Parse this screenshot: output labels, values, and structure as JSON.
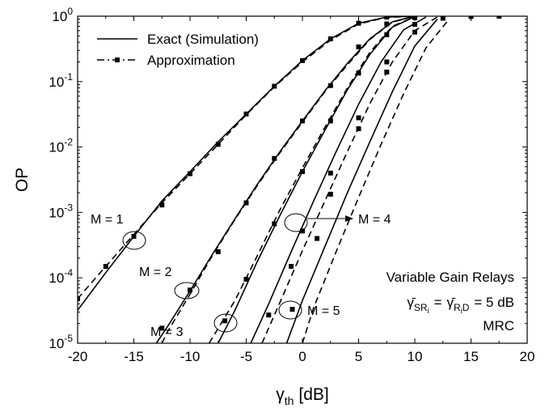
{
  "chart_data": {
    "type": "line",
    "xlabel": "γth [dB]",
    "xlabel_main": "γ",
    "xlabel_sub": "th",
    "xlabel_unit": "[dB]",
    "ylabel": "OP",
    "x_scale": "linear",
    "y_scale": "log",
    "xlim": [
      -20,
      20
    ],
    "ylim": [
      1e-05,
      1
    ],
    "x_ticks": [
      -20,
      -15,
      -10,
      -5,
      0,
      5,
      10,
      15,
      20
    ],
    "x_tick_labels": [
      "-20",
      "-15",
      "-10",
      "-5",
      "0",
      "5",
      "10",
      "15",
      "20"
    ],
    "y_ticks": [
      1e-05,
      0.0001,
      0.001,
      0.01,
      0.1,
      1
    ],
    "y_tick_labels": [
      {
        "base": "10",
        "exp": "-5"
      },
      {
        "base": "10",
        "exp": "-4"
      },
      {
        "base": "10",
        "exp": "-3"
      },
      {
        "base": "10",
        "exp": "-2"
      },
      {
        "base": "10",
        "exp": "-1"
      },
      {
        "base": "10",
        "exp": "0"
      }
    ],
    "grid": false,
    "legend": {
      "placement": "top-left",
      "entries": [
        {
          "label": "Exact (Simulation)",
          "style": "solid"
        },
        {
          "label": "Approximation",
          "style": "dash-dot with square markers"
        }
      ]
    },
    "curve_labels": [
      {
        "text": "M = 1",
        "at": [
          -15,
          0.00045
        ]
      },
      {
        "text": "M = 2",
        "at": [
          -10.2,
          6.5e-05
        ]
      },
      {
        "text": "M = 3",
        "at": [
          -6.8,
          2.2e-05
        ]
      },
      {
        "text": "M = 4",
        "at": [
          -0.9,
          0.0008
        ]
      },
      {
        "text": "M = 5",
        "at": [
          -1.1,
          3.3e-05
        ]
      }
    ],
    "annotations": {
      "line1": "Variable Gain Relays",
      "eq_sym": "γ̄",
      "eq_sub1": "SR",
      "eq_sub1_sub": "i",
      "eq_eq": "=",
      "eq_sub2": "R",
      "eq_sub2_sub": "i",
      "eq_sub2_tail": "D",
      "eq_value": "= 5 dB",
      "line3": "MRC"
    },
    "series": [
      {
        "M": 1,
        "exact": {
          "x": [
            -20,
            -17.5,
            -15,
            -12.5,
            -10,
            -7.5,
            -5,
            -2.5,
            0,
            2.5,
            5,
            7.5,
            10
          ],
          "y": [
            3.2e-05,
            0.00012,
            0.00043,
            0.0015,
            0.0042,
            0.012,
            0.032,
            0.085,
            0.21,
            0.45,
            0.78,
            0.97,
            1.0
          ]
        },
        "approx": {
          "x": [
            -20,
            -17.5,
            -15,
            -12.5,
            -10,
            -7.5,
            -5,
            -2.5,
            0,
            2.5,
            5,
            7.5,
            10
          ],
          "y": [
            4.8e-05,
            0.00015,
            0.00046,
            0.0014,
            0.0039,
            0.011,
            0.031,
            0.083,
            0.2,
            0.43,
            0.76,
            0.96,
            1.0
          ]
        },
        "markers": {
          "x": [
            -20,
            -17.5,
            -15,
            -12.5,
            -10,
            -7.5,
            -5,
            -2.5,
            0,
            2.5,
            5,
            7.5
          ],
          "y": [
            4.8e-05,
            0.00015,
            0.00043,
            0.0013,
            0.0039,
            0.011,
            0.032,
            0.085,
            0.21,
            0.45,
            0.78,
            0.97
          ]
        }
      },
      {
        "M": 2,
        "exact": {
          "x": [
            -13,
            -12,
            -10,
            -8,
            -6,
            -4,
            -2,
            0,
            2,
            4,
            6,
            8,
            10
          ],
          "y": [
            1e-05,
            1.8e-05,
            6.3e-05,
            0.00023,
            0.0008,
            0.0027,
            0.0085,
            0.025,
            0.072,
            0.19,
            0.45,
            0.82,
            1.0
          ]
        },
        "approx": {
          "x": [
            -12.5,
            -12,
            -10,
            -8,
            -6,
            -4,
            -2,
            0,
            2,
            4,
            6,
            8,
            10
          ],
          "y": [
            1e-05,
            1.5e-05,
            5.6e-05,
            0.00022,
            0.00078,
            0.0026,
            0.0082,
            0.024,
            0.07,
            0.18,
            0.44,
            0.81,
            1.0
          ]
        },
        "markers": {
          "x": [
            -12.5,
            -10,
            -7.5,
            -5,
            -2.5,
            0,
            2.5,
            5,
            7.5
          ],
          "y": [
            1.7e-05,
            6.5e-05,
            0.00025,
            0.0014,
            0.0067,
            0.025,
            0.087,
            0.34,
            0.76
          ]
        }
      },
      {
        "M": 3,
        "exact": {
          "x": [
            -7.5,
            -6,
            -4,
            -2,
            0,
            2,
            4,
            6,
            8,
            10
          ],
          "y": [
            1e-05,
            3.2e-05,
            0.00018,
            0.0009,
            0.0042,
            0.018,
            0.075,
            0.26,
            0.68,
            0.98
          ]
        },
        "approx": {
          "x": [
            -8.3,
            -6,
            -4,
            -2,
            0,
            2,
            4,
            6,
            8,
            10
          ],
          "y": [
            1e-05,
            4.5e-05,
            0.00022,
            0.0011,
            0.0048,
            0.02,
            0.08,
            0.28,
            0.7,
            0.98
          ]
        },
        "markers": {
          "x": [
            -6.9,
            -5,
            -2.5,
            0,
            2.5,
            5,
            7.5,
            10
          ],
          "y": [
            2.2e-05,
            9.5e-05,
            0.00067,
            0.0042,
            0.025,
            0.135,
            0.52,
            0.95
          ]
        }
      },
      {
        "M": 4,
        "exact": {
          "x": [
            -4.6,
            -3,
            -1,
            1,
            3,
            5,
            7,
            9,
            11
          ],
          "y": [
            1e-05,
            4e-05,
            0.00025,
            0.0015,
            0.0085,
            0.045,
            0.2,
            0.62,
            0.97
          ]
        },
        "approx": {
          "x": [
            -3.6,
            -2,
            0,
            2,
            4,
            6,
            8,
            10,
            12
          ],
          "y": [
            1e-05,
            4.2e-05,
            0.00026,
            0.0015,
            0.0085,
            0.046,
            0.2,
            0.6,
            0.97
          ]
        },
        "markers": {
          "x": [
            -3,
            -1,
            0,
            2.5,
            5,
            7.5,
            10
          ],
          "y": [
            2.7e-05,
            0.00015,
            0.00052,
            0.004,
            0.028,
            0.2,
            0.75
          ]
        }
      },
      {
        "M": 5,
        "exact": {
          "x": [
            -1.4,
            0,
            2,
            4,
            6,
            8,
            10,
            12
          ],
          "y": [
            1e-05,
            4.5e-05,
            0.0003,
            0.002,
            0.012,
            0.07,
            0.35,
            0.9
          ]
        },
        "approx": {
          "x": [
            0,
            1,
            3,
            5,
            7,
            9,
            11,
            13
          ],
          "y": [
            1e-05,
            3.5e-05,
            0.00025,
            0.0017,
            0.011,
            0.065,
            0.33,
            0.88
          ]
        },
        "markers": {
          "x": [
            -0.9,
            1.3,
            2.5,
            5,
            7.5,
            10,
            12.5,
            15,
            17.5
          ],
          "y": [
            3.3e-05,
            0.0004,
            0.0019,
            0.019,
            0.14,
            0.57,
            0.93,
            0.99,
            1.0
          ]
        }
      }
    ]
  }
}
